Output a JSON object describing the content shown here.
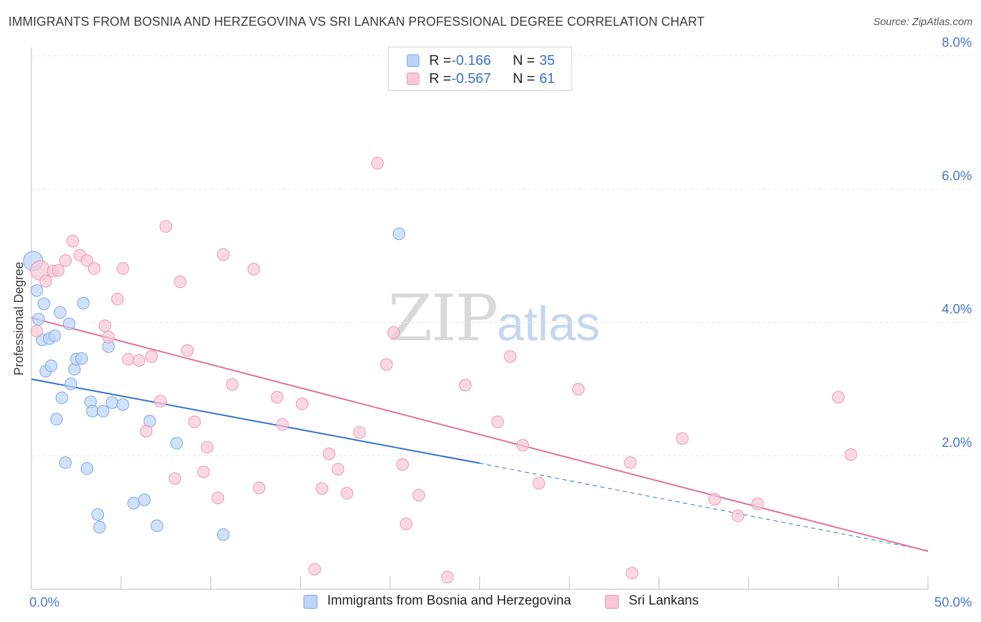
{
  "title": "IMMIGRANTS FROM BOSNIA AND HERZEGOVINA VS SRI LANKAN PROFESSIONAL DEGREE CORRELATION CHART",
  "source": "Source: ZipAtlas.com",
  "watermark": {
    "zip": "ZIP",
    "atlas": "atlas"
  },
  "colors": {
    "blue_fill": "#bcd4f5",
    "blue_stroke": "#7aa6e4",
    "blue_line": "#2f6fd1",
    "pink_fill": "#f8c7d6",
    "pink_stroke": "#ea98b3",
    "pink_line": "#e07099",
    "tick_text": "#4a77c8",
    "grid": "#e3e3e3"
  },
  "legend": {
    "rows": [
      {
        "r_label": "R =",
        "r_value": "-0.166",
        "n_label": "N =",
        "n_value": "35"
      },
      {
        "r_label": "R =",
        "r_value": "-0.567",
        "n_label": "N =",
        "n_value": "61"
      }
    ]
  },
  "bottom_legend": {
    "blue_label": "Immigrants from Bosnia and Herzegovina",
    "pink_label": "Sri Lankans"
  },
  "chart_data": {
    "type": "scatter",
    "title": "IMMIGRANTS FROM BOSNIA AND HERZEGOVINA VS SRI LANKAN PROFESSIONAL DEGREE CORRELATION CHART",
    "xlabel": "",
    "ylabel": "Professional Degree",
    "xlim": [
      0,
      50
    ],
    "ylim": [
      0,
      8
    ],
    "x_tick_labels": {
      "left": "0.0%",
      "right": "50.0%"
    },
    "y_ticks": [
      {
        "value": 2,
        "label": "2.0%"
      },
      {
        "value": 4,
        "label": "4.0%"
      },
      {
        "value": 6,
        "label": "6.0%"
      },
      {
        "value": 8,
        "label": "8.0%"
      }
    ],
    "grid": true,
    "series": [
      {
        "name": "Immigrants from Bosnia and Herzegovina",
        "color": "blue",
        "points": [
          [
            0.1,
            4.92
          ],
          [
            0.3,
            4.48
          ],
          [
            0.4,
            4.05
          ],
          [
            0.6,
            3.74
          ],
          [
            0.7,
            4.28
          ],
          [
            0.8,
            3.27
          ],
          [
            1.0,
            3.76
          ],
          [
            1.1,
            3.35
          ],
          [
            1.3,
            3.8
          ],
          [
            1.4,
            2.55
          ],
          [
            1.6,
            4.15
          ],
          [
            1.7,
            2.87
          ],
          [
            1.9,
            1.9
          ],
          [
            2.1,
            3.98
          ],
          [
            2.2,
            3.08
          ],
          [
            2.4,
            3.3
          ],
          [
            2.5,
            3.45
          ],
          [
            2.8,
            3.46
          ],
          [
            2.9,
            4.29
          ],
          [
            3.1,
            1.81
          ],
          [
            3.3,
            2.81
          ],
          [
            3.4,
            2.67
          ],
          [
            3.7,
            1.12
          ],
          [
            3.8,
            0.93
          ],
          [
            4.0,
            2.67
          ],
          [
            4.3,
            3.64
          ],
          [
            4.5,
            2.8
          ],
          [
            5.1,
            2.77
          ],
          [
            5.7,
            1.29
          ],
          [
            6.3,
            1.34
          ],
          [
            6.6,
            2.52
          ],
          [
            7.0,
            0.95
          ],
          [
            8.1,
            2.19
          ],
          [
            10.7,
            0.82
          ],
          [
            20.5,
            5.33
          ]
        ],
        "trend": {
          "x": [
            0,
            25
          ],
          "y": [
            3.15,
            1.89
          ],
          "dashed_to": [
            50,
            0.58
          ]
        }
      },
      {
        "name": "Sri Lankans",
        "color": "pink",
        "points": [
          [
            0.3,
            3.87
          ],
          [
            0.5,
            4.78
          ],
          [
            0.8,
            4.62
          ],
          [
            1.2,
            4.77
          ],
          [
            1.5,
            4.78
          ],
          [
            1.9,
            4.93
          ],
          [
            2.3,
            5.22
          ],
          [
            2.7,
            5.01
          ],
          [
            3.1,
            4.93
          ],
          [
            3.5,
            4.81
          ],
          [
            4.1,
            3.95
          ],
          [
            4.3,
            3.78
          ],
          [
            4.8,
            4.35
          ],
          [
            5.1,
            4.81
          ],
          [
            5.4,
            3.45
          ],
          [
            6.0,
            3.43
          ],
          [
            6.4,
            2.37
          ],
          [
            6.7,
            3.49
          ],
          [
            7.2,
            2.82
          ],
          [
            7.5,
            5.44
          ],
          [
            8.0,
            1.66
          ],
          [
            8.3,
            4.61
          ],
          [
            8.7,
            3.58
          ],
          [
            9.1,
            2.51
          ],
          [
            9.6,
            1.76
          ],
          [
            9.8,
            2.13
          ],
          [
            10.4,
            1.37
          ],
          [
            10.7,
            5.02
          ],
          [
            11.2,
            3.07
          ],
          [
            12.4,
            4.8
          ],
          [
            12.7,
            1.52
          ],
          [
            13.7,
            2.88
          ],
          [
            14.0,
            2.47
          ],
          [
            15.1,
            2.78
          ],
          [
            15.8,
            0.3
          ],
          [
            16.2,
            1.51
          ],
          [
            16.6,
            2.03
          ],
          [
            17.1,
            1.8
          ],
          [
            17.6,
            1.44
          ],
          [
            18.3,
            2.35
          ],
          [
            19.3,
            6.39
          ],
          [
            19.8,
            3.37
          ],
          [
            20.2,
            3.85
          ],
          [
            20.7,
            1.87
          ],
          [
            20.9,
            0.98
          ],
          [
            21.6,
            1.41
          ],
          [
            23.2,
            0.18
          ],
          [
            24.2,
            3.06
          ],
          [
            26.0,
            2.51
          ],
          [
            26.7,
            3.49
          ],
          [
            27.4,
            2.16
          ],
          [
            28.3,
            1.59
          ],
          [
            30.5,
            3.0
          ],
          [
            33.4,
            1.9
          ],
          [
            33.5,
            0.24
          ],
          [
            36.3,
            2.26
          ],
          [
            38.1,
            1.35
          ],
          [
            39.4,
            1.1
          ],
          [
            40.5,
            1.28
          ],
          [
            45.0,
            2.88
          ],
          [
            45.7,
            2.02
          ]
        ],
        "trend": {
          "x": [
            0,
            50
          ],
          "y": [
            4.07,
            0.57
          ]
        }
      }
    ]
  }
}
